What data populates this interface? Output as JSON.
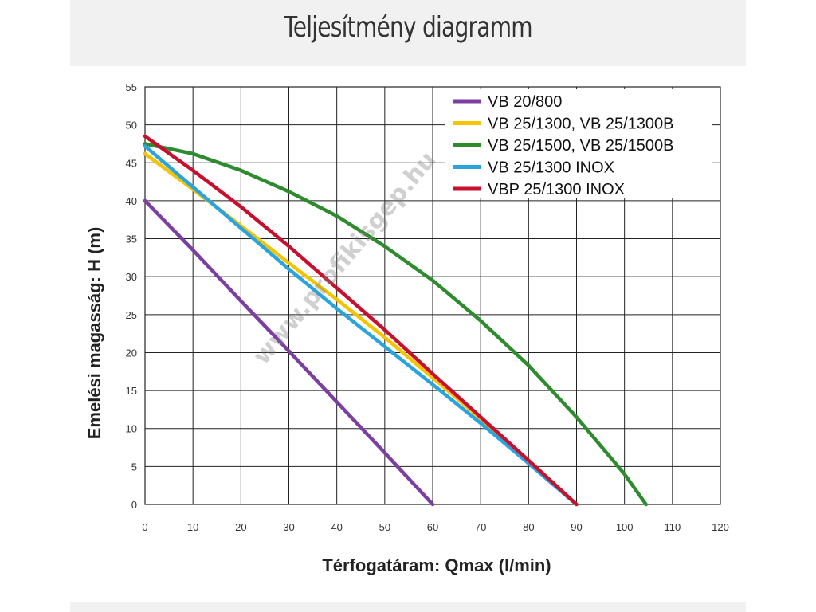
{
  "page": {
    "heading": "Teljesítmény diagramm"
  },
  "watermark": "www.profikisgep.hu",
  "chart_data": {
    "type": "line",
    "title": "",
    "xlabel": "Térfogatáram:  Qmax (l/min)",
    "ylabel": "Emelési magasság: H (m)",
    "xlim": [
      0,
      120
    ],
    "ylim": [
      0,
      55
    ],
    "x_ticks": [
      0,
      10,
      20,
      30,
      40,
      50,
      60,
      70,
      80,
      90,
      100,
      110,
      120
    ],
    "y_ticks": [
      0,
      5,
      10,
      15,
      20,
      25,
      30,
      35,
      40,
      45,
      50,
      55
    ],
    "grid": true,
    "legend_position": "top-right",
    "series": [
      {
        "name": "VB 20/800",
        "color": "#7b3fa0",
        "points": [
          [
            0,
            40
          ],
          [
            10,
            33.5
          ],
          [
            20,
            26.8
          ],
          [
            30,
            20.2
          ],
          [
            40,
            13.5
          ],
          [
            50,
            6.8
          ],
          [
            60,
            0
          ]
        ]
      },
      {
        "name": "VB 25/1300, VB 25/1300B",
        "color": "#f5c400",
        "points": [
          [
            0,
            46.2
          ],
          [
            10,
            41.5
          ],
          [
            20,
            36.7
          ],
          [
            30,
            31.8
          ],
          [
            40,
            27
          ],
          [
            50,
            22
          ],
          [
            60,
            16.7
          ],
          [
            70,
            11.3
          ],
          [
            80,
            5.8
          ],
          [
            90,
            0
          ]
        ]
      },
      {
        "name": "VB 25/1500, VB 25/1500B",
        "color": "#2e8b2e",
        "points": [
          [
            0,
            47.5
          ],
          [
            10,
            46.2
          ],
          [
            20,
            44
          ],
          [
            30,
            41.2
          ],
          [
            40,
            38
          ],
          [
            50,
            34
          ],
          [
            60,
            29.5
          ],
          [
            70,
            24.2
          ],
          [
            80,
            18.3
          ],
          [
            90,
            11.5
          ],
          [
            100,
            4
          ],
          [
            104.5,
            0
          ]
        ]
      },
      {
        "name": "VB 25/1300 INOX",
        "color": "#2aa4dc",
        "points": [
          [
            0,
            47.2
          ],
          [
            10,
            41.8
          ],
          [
            20,
            36.4
          ],
          [
            30,
            31
          ],
          [
            40,
            25.8
          ],
          [
            50,
            20.8
          ],
          [
            60,
            15.8
          ],
          [
            70,
            10.7
          ],
          [
            80,
            5.4
          ],
          [
            90,
            0
          ]
        ]
      },
      {
        "name": "VBP 25/1300 INOX",
        "color": "#c8102e",
        "points": [
          [
            0,
            48.5
          ],
          [
            10,
            44
          ],
          [
            20,
            39.2
          ],
          [
            30,
            34
          ],
          [
            40,
            28.5
          ],
          [
            50,
            23
          ],
          [
            60,
            17.2
          ],
          [
            70,
            11.5
          ],
          [
            80,
            5.8
          ],
          [
            90,
            0
          ]
        ]
      }
    ]
  }
}
